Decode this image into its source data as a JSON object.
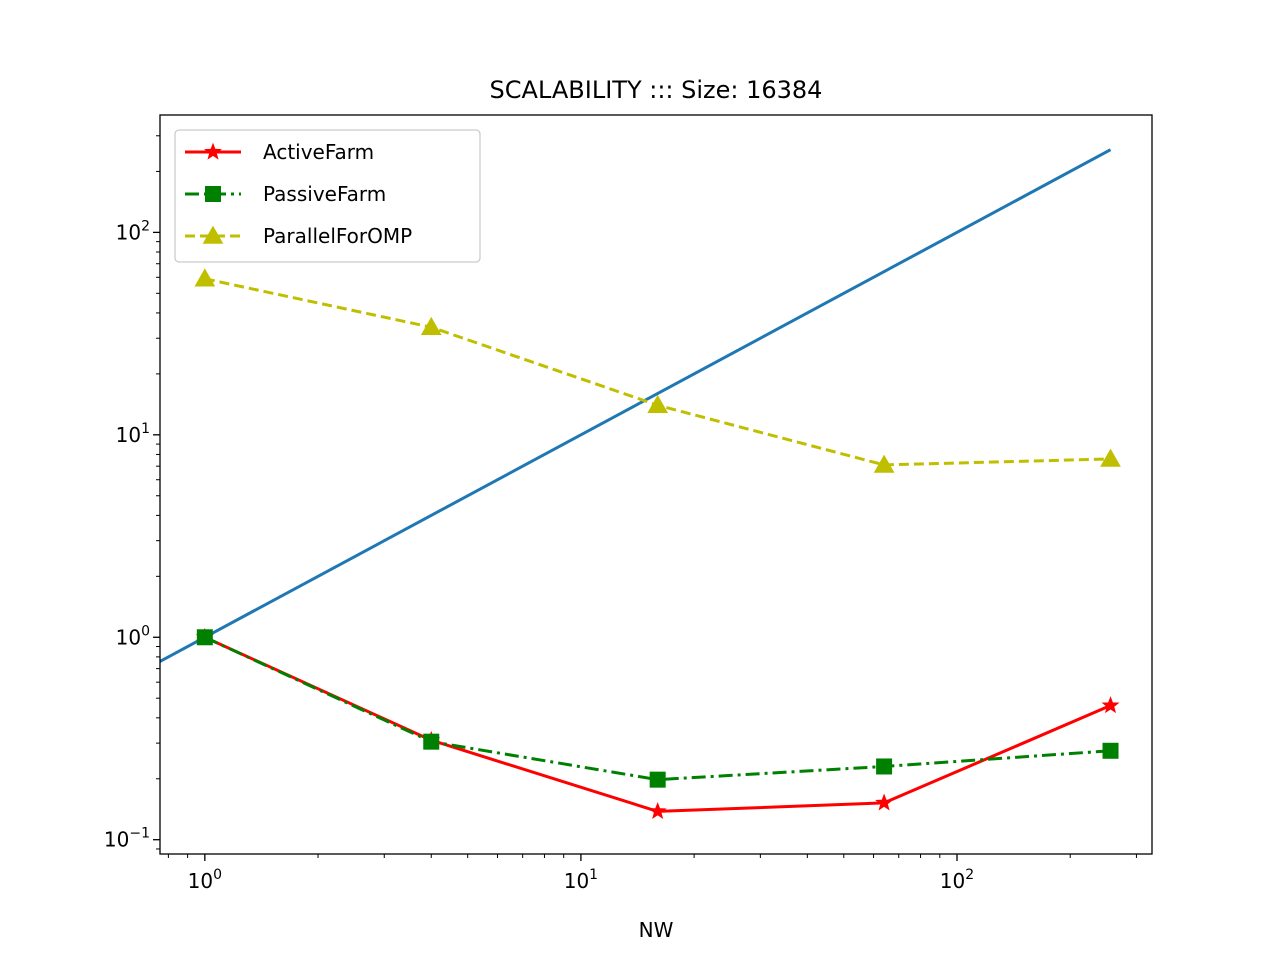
{
  "chart_data": {
    "type": "line",
    "title": "SCALABILITY ::: Size: 16384",
    "xlabel": "NW",
    "ylabel": "",
    "xscale": "log",
    "yscale": "log",
    "xlim": [
      0.76,
      330
    ],
    "ylim": [
      0.085,
      380
    ],
    "grid": false,
    "legend_position": "upper left",
    "x_ticks": [
      {
        "value": 1,
        "base": "10",
        "exp": "0"
      },
      {
        "value": 10,
        "base": "10",
        "exp": "1"
      },
      {
        "value": 100,
        "base": "10",
        "exp": "2"
      }
    ],
    "y_ticks": [
      {
        "value": 0.1,
        "base": "10",
        "exp": "−1"
      },
      {
        "value": 1,
        "base": "10",
        "exp": "0"
      },
      {
        "value": 10,
        "base": "10",
        "exp": "1"
      },
      {
        "value": 100,
        "base": "10",
        "exp": "2"
      }
    ],
    "ideal_line": {
      "x": [
        0.76,
        256
      ],
      "y": [
        0.76,
        256
      ],
      "color": "#1f77b4"
    },
    "series": [
      {
        "name": "ActiveFarm",
        "x": [
          1,
          4,
          16,
          64,
          256
        ],
        "y": [
          1.0,
          0.31,
          0.138,
          0.152,
          0.46
        ],
        "color": "#ff0000",
        "linestyle": "solid",
        "marker": "star"
      },
      {
        "name": "PassiveFarm",
        "x": [
          1,
          4,
          16,
          64,
          256
        ],
        "y": [
          1.0,
          0.305,
          0.198,
          0.23,
          0.275
        ],
        "color": "#008000",
        "linestyle": "dashdot",
        "marker": "square"
      },
      {
        "name": "ParallelForOMP",
        "x": [
          1,
          4,
          16,
          64,
          256
        ],
        "y": [
          59,
          34,
          14,
          7.1,
          7.6
        ],
        "color": "#bfbf00",
        "linestyle": "dashed",
        "marker": "triangle"
      }
    ]
  }
}
